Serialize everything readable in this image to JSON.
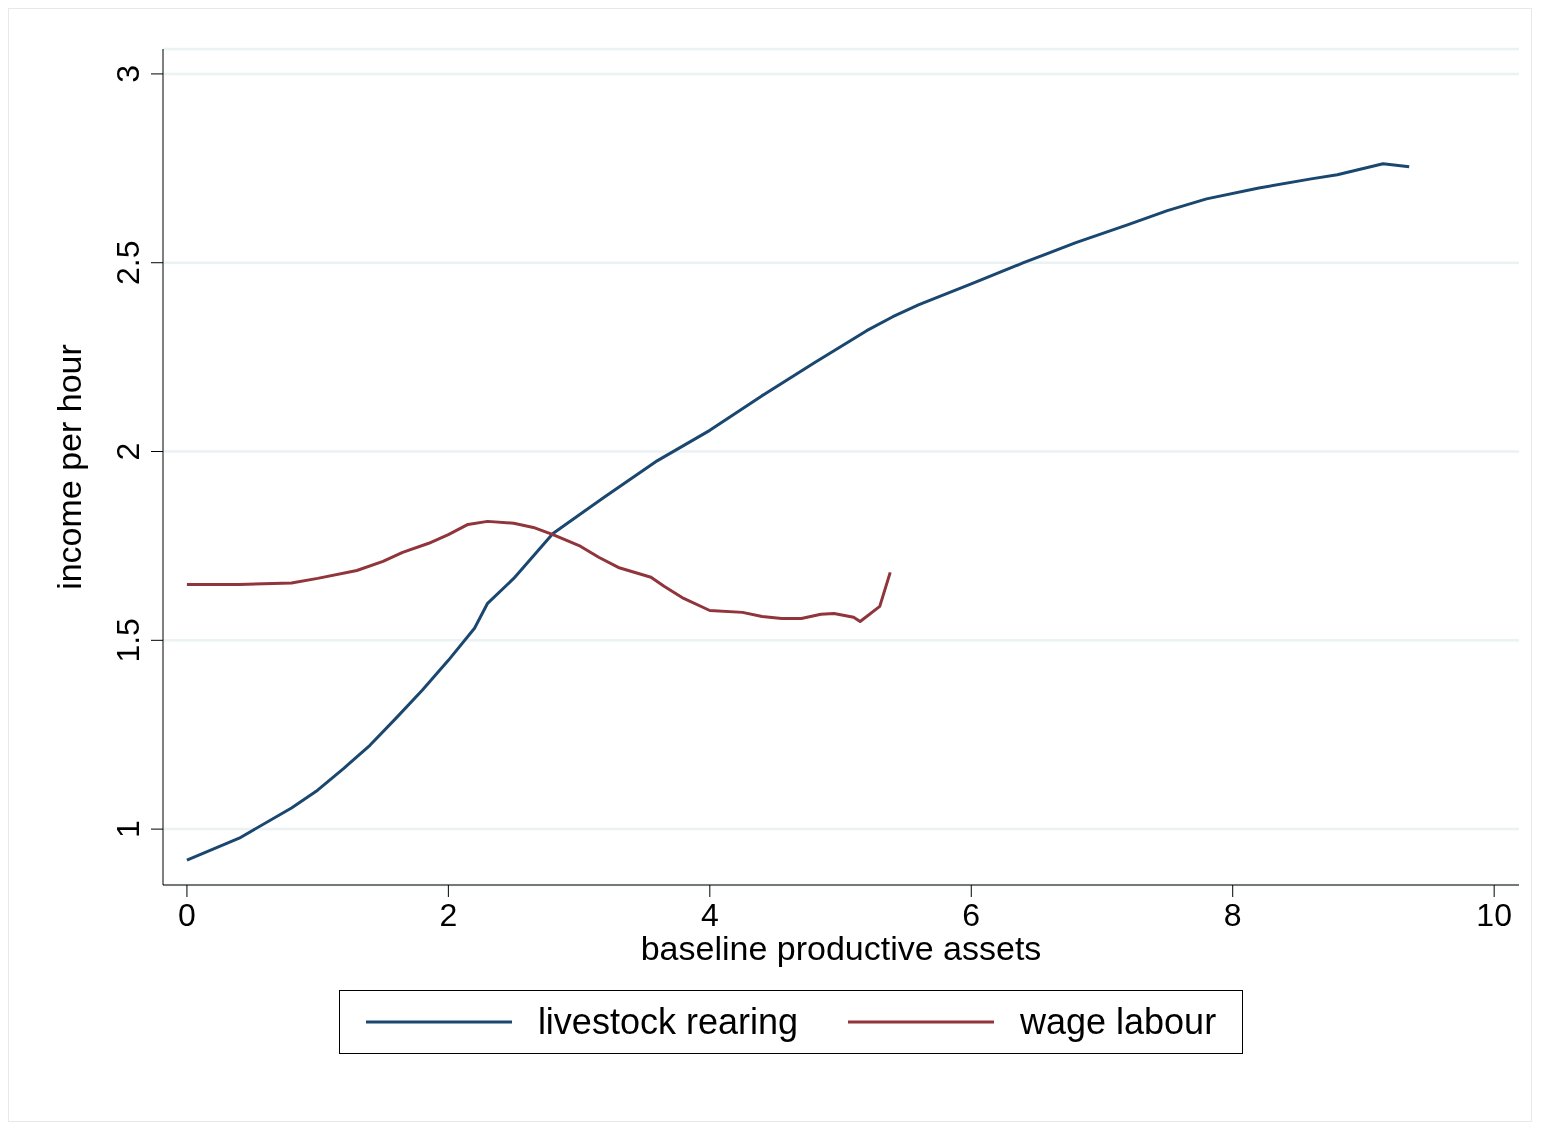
{
  "chart_data": {
    "type": "line",
    "xlabel": "baseline productive assets",
    "ylabel": "income per hour",
    "xlim": [
      -0.183,
      10.19
    ],
    "xticks": [
      0,
      2,
      4,
      6,
      8,
      10
    ],
    "ylim": [
      0.852,
      3.066
    ],
    "yticks": [
      1,
      1.5,
      2,
      2.5,
      3
    ],
    "grid": "y",
    "legend": "bottom",
    "marker": "none",
    "line_style": "solid",
    "series": [
      {
        "name": "livestock rearing",
        "color": "#1a476f",
        "x": [
          0,
          0.4,
          0.8,
          1.0,
          1.2,
          1.4,
          1.6,
          1.8,
          2.0,
          2.2,
          2.3,
          2.5,
          2.8,
          3.2,
          3.6,
          4.0,
          4.4,
          4.8,
          5.2,
          5.4,
          5.6,
          6.0,
          6.4,
          6.8,
          7.2,
          7.5,
          7.8,
          8.2,
          8.6,
          8.8,
          9.15,
          9.35
        ],
        "values": [
          0.918,
          0.976,
          1.056,
          1.103,
          1.161,
          1.222,
          1.294,
          1.368,
          1.447,
          1.532,
          1.598,
          1.664,
          1.783,
          1.881,
          1.976,
          2.056,
          2.148,
          2.235,
          2.32,
          2.357,
          2.389,
          2.444,
          2.5,
          2.553,
          2.601,
          2.638,
          2.669,
          2.698,
          2.722,
          2.733,
          2.762,
          2.754
        ]
      },
      {
        "name": "wage labour",
        "color": "#90353b",
        "x": [
          0,
          0.4,
          0.8,
          1.0,
          1.3,
          1.5,
          1.65,
          1.85,
          2.0,
          2.15,
          2.3,
          2.5,
          2.65,
          2.8,
          3.0,
          3.15,
          3.3,
          3.55,
          3.65,
          3.8,
          4.0,
          4.25,
          4.4,
          4.55,
          4.7,
          4.85,
          4.95,
          5.1,
          5.15,
          5.3,
          5.38
        ],
        "values": [
          1.648,
          1.648,
          1.652,
          1.664,
          1.685,
          1.709,
          1.733,
          1.757,
          1.78,
          1.807,
          1.815,
          1.81,
          1.799,
          1.78,
          1.751,
          1.72,
          1.693,
          1.667,
          1.643,
          1.611,
          1.579,
          1.574,
          1.563,
          1.558,
          1.558,
          1.569,
          1.571,
          1.561,
          1.55,
          1.59,
          1.68
        ]
      }
    ]
  }
}
